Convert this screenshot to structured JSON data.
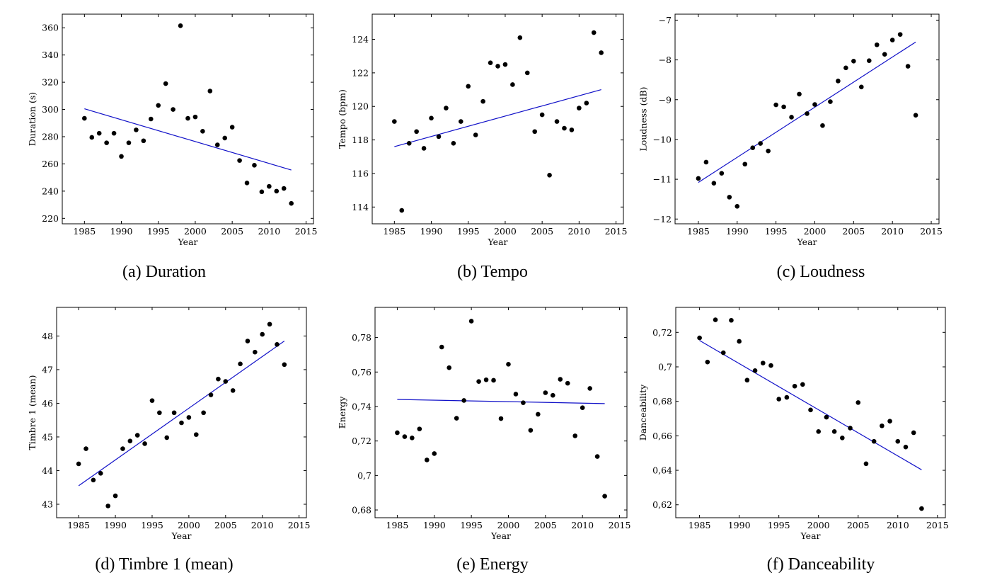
{
  "chart_data": [
    {
      "id": "a",
      "type": "scatter",
      "caption": "(a)  Duration",
      "xlabel": "Year",
      "ylabel": "Duration (s)",
      "xlim": [
        1982,
        2016
      ],
      "ylim": [
        216,
        370
      ],
      "xticks": [
        1985,
        1990,
        1995,
        2000,
        2005,
        2010,
        2015
      ],
      "yticks": [
        220,
        240,
        260,
        280,
        300,
        320,
        340,
        360
      ],
      "ytick_labels": [
        "220",
        "240",
        "260",
        "280",
        "300",
        "320",
        "340",
        "360"
      ],
      "x": [
        1985,
        1986,
        1987,
        1988,
        1989,
        1990,
        1991,
        1992,
        1993,
        1994,
        1995,
        1996,
        1997,
        1998,
        1999,
        2000,
        2001,
        2002,
        2003,
        2004,
        2005,
        2006,
        2007,
        2008,
        2009,
        2010,
        2011,
        2012,
        2013
      ],
      "y": [
        293.5,
        279.5,
        282.5,
        275.5,
        282.5,
        265.5,
        275.5,
        285,
        277,
        293,
        303,
        319,
        300,
        361.5,
        293.5,
        294.5,
        284,
        313.5,
        274,
        279,
        287,
        262.5,
        246,
        259,
        239.5,
        243.5,
        240,
        242,
        231
      ],
      "fit": {
        "x0": 1985,
        "y0": 300.5,
        "x1": 2013,
        "y1": 255.5
      },
      "grid": false,
      "legend": "none"
    },
    {
      "id": "b",
      "type": "scatter",
      "caption": "(b)  Tempo",
      "xlabel": "Year",
      "ylabel": "Tempo (bpm)",
      "xlim": [
        1982,
        2016
      ],
      "ylim": [
        113,
        125.5
      ],
      "xticks": [
        1985,
        1990,
        1995,
        2000,
        2005,
        2010,
        2015
      ],
      "yticks": [
        114,
        116,
        118,
        120,
        122,
        124
      ],
      "ytick_labels": [
        "114",
        "116",
        "118",
        "120",
        "122",
        "124"
      ],
      "x": [
        1985,
        1986,
        1987,
        1988,
        1989,
        1990,
        1991,
        1992,
        1993,
        1994,
        1995,
        1996,
        1997,
        1998,
        1999,
        2000,
        2001,
        2002,
        2003,
        2004,
        2005,
        2006,
        2007,
        2008,
        2009,
        2010,
        2011,
        2012,
        2013
      ],
      "y": [
        119.1,
        113.8,
        117.8,
        118.5,
        117.5,
        119.3,
        118.2,
        119.9,
        117.8,
        119.1,
        121.2,
        118.3,
        120.3,
        122.6,
        122.4,
        122.5,
        121.3,
        124.1,
        122,
        118.5,
        119.5,
        115.9,
        119.1,
        118.7,
        118.6,
        119.9,
        120.2,
        124.4,
        123.2
      ],
      "fit": {
        "x0": 1985,
        "y0": 117.6,
        "x1": 2013,
        "y1": 121
      },
      "grid": false,
      "legend": "none"
    },
    {
      "id": "c",
      "type": "scatter",
      "caption": "(c)  Loudness",
      "xlabel": "Year",
      "ylabel": "Loudness (dB)",
      "xlim": [
        1982,
        2016
      ],
      "ylim": [
        -12.12,
        -6.85
      ],
      "xticks": [
        1985,
        1990,
        1995,
        2000,
        2005,
        2010,
        2015
      ],
      "yticks": [
        -12,
        -11,
        -10,
        -9,
        -8,
        -7
      ],
      "ytick_labels": [
        "−12",
        "−11",
        "−10",
        "−9",
        "−8",
        "−7"
      ],
      "x": [
        1985,
        1986,
        1987,
        1988,
        1989,
        1990,
        1991,
        1992,
        1993,
        1994,
        1995,
        1996,
        1997,
        1998,
        1999,
        2000,
        2001,
        2002,
        2003,
        2004,
        2005,
        2006,
        2007,
        2008,
        2009,
        2010,
        2011,
        2012,
        2013
      ],
      "y": [
        -10.98,
        -10.57,
        -11.1,
        -10.85,
        -11.45,
        -11.68,
        -10.62,
        -10.21,
        -10.1,
        -10.29,
        -9.13,
        -9.18,
        -9.44,
        -8.86,
        -9.35,
        -9.12,
        -9.65,
        -9.05,
        -8.53,
        -8.2,
        -8.03,
        -8.68,
        -8.02,
        -7.62,
        -7.86,
        -7.5,
        -7.36,
        -8.16,
        -9.39
      ],
      "fit": {
        "x0": 1985,
        "y0": -11.08,
        "x1": 2013,
        "y1": -7.55
      },
      "grid": false,
      "legend": "none"
    },
    {
      "id": "d",
      "type": "scatter",
      "caption": "(d)  Timbre 1 (mean)",
      "xlabel": "Year",
      "ylabel": "Timbre 1 (mean)",
      "xlim": [
        1982,
        2016
      ],
      "ylim": [
        42.6,
        48.85
      ],
      "xticks": [
        1985,
        1990,
        1995,
        2000,
        2005,
        2010,
        2015
      ],
      "yticks": [
        43,
        44,
        45,
        46,
        47,
        48
      ],
      "ytick_labels": [
        "43",
        "44",
        "45",
        "46",
        "47",
        "48"
      ],
      "x": [
        1985,
        1986,
        1987,
        1988,
        1989,
        1990,
        1991,
        1992,
        1993,
        1994,
        1995,
        1996,
        1997,
        1998,
        1999,
        2000,
        2001,
        2002,
        2003,
        2004,
        2005,
        2006,
        2007,
        2008,
        2009,
        2010,
        2011,
        2012,
        2013
      ],
      "y": [
        44.2,
        44.65,
        43.72,
        43.92,
        42.95,
        43.25,
        44.65,
        44.88,
        45.05,
        44.8,
        46.08,
        45.72,
        44.98,
        45.72,
        45.42,
        45.58,
        45.07,
        45.72,
        46.25,
        46.72,
        46.65,
        46.38,
        47.17,
        47.85,
        47.52,
        48.05,
        48.35,
        47.75,
        47.15
      ],
      "fit": {
        "x0": 1985,
        "y0": 43.55,
        "x1": 2013,
        "y1": 47.85
      },
      "grid": false,
      "legend": "none"
    },
    {
      "id": "e",
      "type": "scatter",
      "caption": "(e)  Energy",
      "xlabel": "Year",
      "ylabel": "Energy",
      "xlim": [
        1982,
        2016
      ],
      "ylim": [
        0.6755,
        0.7975
      ],
      "xticks": [
        1985,
        1990,
        1995,
        2000,
        2005,
        2010,
        2015
      ],
      "yticks": [
        0.68,
        0.7,
        0.72,
        0.74,
        0.76,
        0.78
      ],
      "ytick_labels": [
        "0,68",
        "0,7",
        "0,72",
        "0,74",
        "0,76",
        "0,78"
      ],
      "x": [
        1985,
        1986,
        1987,
        1988,
        1989,
        1990,
        1991,
        1992,
        1993,
        1994,
        1995,
        1996,
        1997,
        1998,
        1999,
        2000,
        2001,
        2002,
        2003,
        2004,
        2005,
        2006,
        2007,
        2008,
        2009,
        2010,
        2011,
        2012,
        2013
      ],
      "y": [
        0.7248,
        0.7225,
        0.7218,
        0.727,
        0.709,
        0.7127,
        0.7745,
        0.7625,
        0.7332,
        0.7435,
        0.7895,
        0.7545,
        0.7555,
        0.7552,
        0.733,
        0.7645,
        0.7472,
        0.7422,
        0.7262,
        0.7355,
        0.748,
        0.7465,
        0.7558,
        0.7535,
        0.723,
        0.7393,
        0.7505,
        0.711,
        0.688
      ],
      "fit": {
        "x0": 1985,
        "y0": 0.7441,
        "x1": 2013,
        "y1": 0.7417
      },
      "grid": false,
      "legend": "none"
    },
    {
      "id": "f",
      "type": "scatter",
      "caption": "(f)  Danceability",
      "xlabel": "Year",
      "ylabel": "Danceability",
      "xlim": [
        1982,
        2016
      ],
      "ylim": [
        0.6125,
        0.7345
      ],
      "xticks": [
        1985,
        1990,
        1995,
        2000,
        2005,
        2010,
        2015
      ],
      "yticks": [
        0.62,
        0.64,
        0.66,
        0.68,
        0.7,
        0.72
      ],
      "ytick_labels": [
        "0,62",
        "0,64",
        "0,66",
        "0,68",
        "0,7",
        "0,72"
      ],
      "x": [
        1985,
        1986,
        1987,
        1988,
        1989,
        1990,
        1991,
        1992,
        1993,
        1994,
        1995,
        1996,
        1997,
        1998,
        1999,
        2000,
        2001,
        2002,
        2003,
        2004,
        2005,
        2006,
        2007,
        2008,
        2009,
        2010,
        2011,
        2012,
        2013
      ],
      "y": [
        0.7168,
        0.7028,
        0.7273,
        0.7082,
        0.727,
        0.7148,
        0.6923,
        0.6978,
        0.7022,
        0.7008,
        0.6813,
        0.6823,
        0.6888,
        0.6898,
        0.675,
        0.6625,
        0.6708,
        0.6625,
        0.6588,
        0.6645,
        0.6793,
        0.6438,
        0.6568,
        0.6658,
        0.6685,
        0.6568,
        0.6535,
        0.6618,
        0.6178
      ],
      "fit": {
        "x0": 1985,
        "y0": 0.7153,
        "x1": 2013,
        "y1": 0.6403
      },
      "grid": false,
      "legend": "none"
    }
  ]
}
